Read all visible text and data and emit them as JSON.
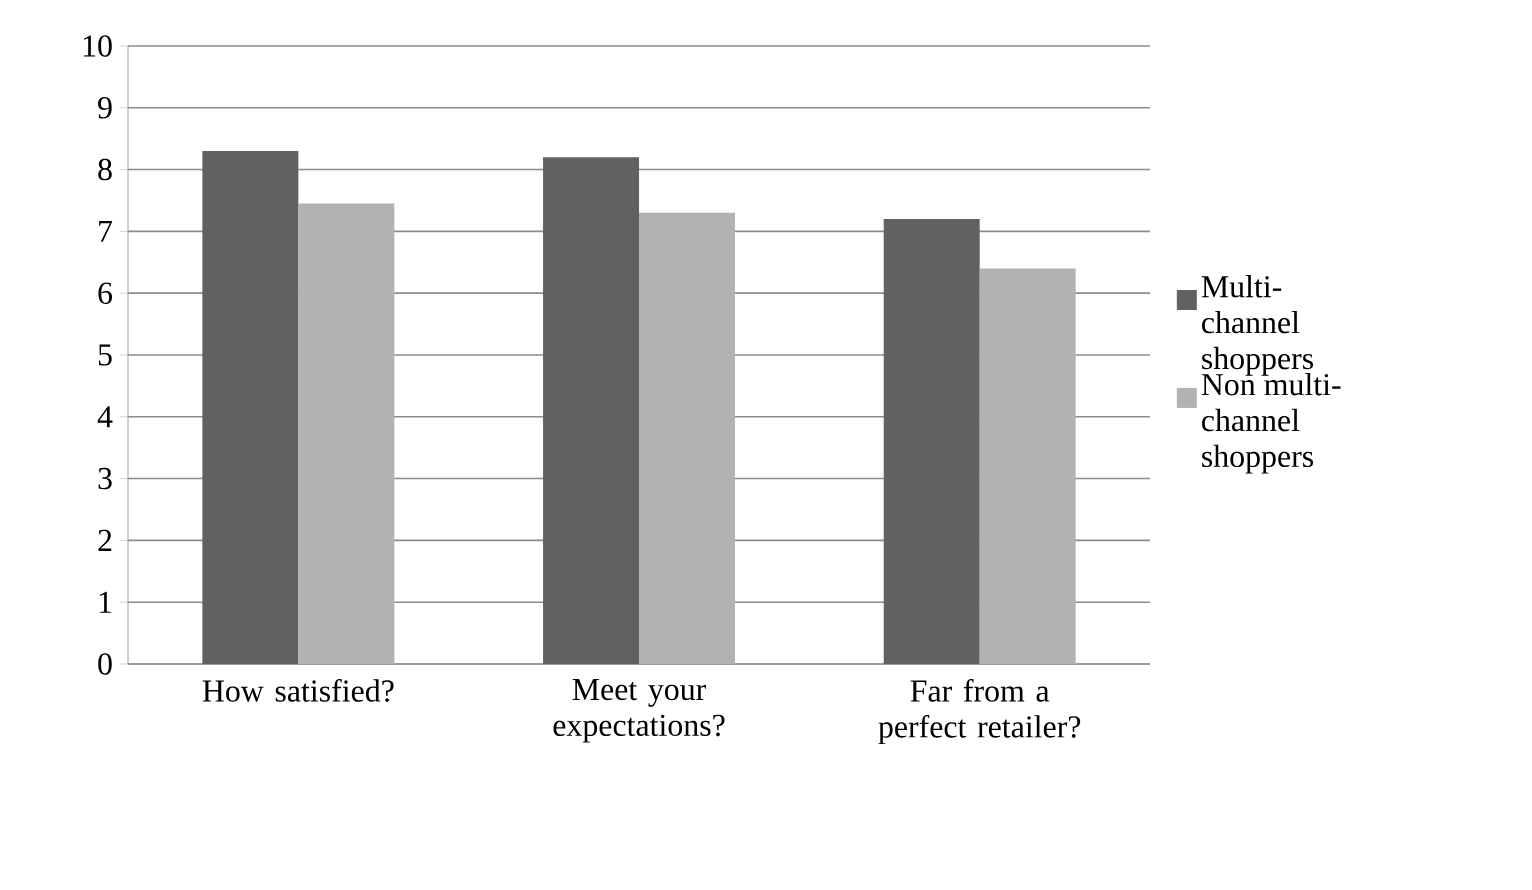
{
  "chart_data": {
    "type": "bar",
    "categories": [
      "How satisfied?",
      "Meet your expectations?",
      "Far from a perfect retailer?"
    ],
    "series": [
      {
        "name": "Multi-channel shoppers",
        "color": "#616161",
        "values": [
          8.3,
          8.2,
          7.2
        ]
      },
      {
        "name": "Non multi-channel shoppers",
        "color": "#b2b2b2",
        "values": [
          7.45,
          7.3,
          6.4
        ]
      }
    ],
    "ylim": [
      0,
      10
    ],
    "yticks": [
      0,
      1,
      2,
      3,
      4,
      5,
      6,
      7,
      8,
      9,
      10
    ],
    "grid": "y",
    "legend": "right"
  }
}
